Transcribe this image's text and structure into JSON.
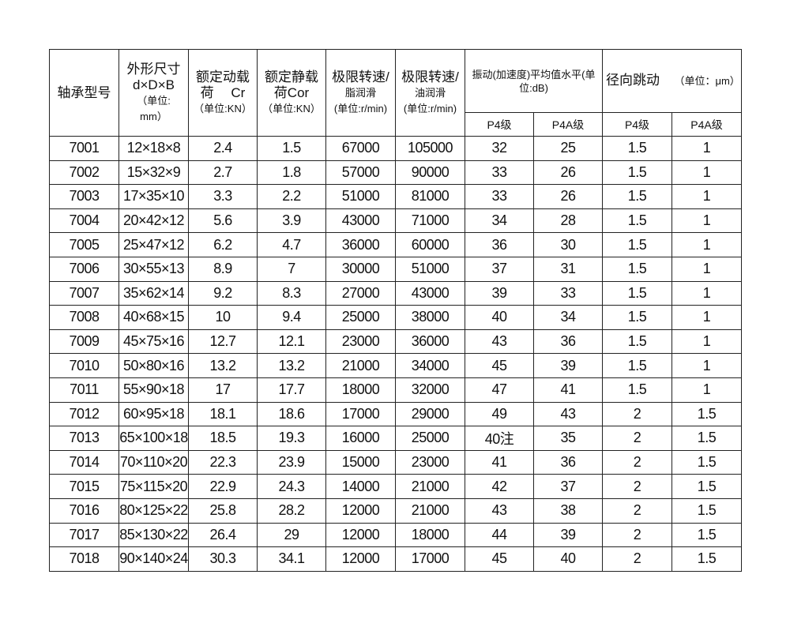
{
  "table": {
    "headers": {
      "model": "轴承型号",
      "dims": [
        "外形尺寸",
        "d×D×B",
        "（单位:",
        "mm）"
      ],
      "dynamic_load": [
        "额定动载",
        "荷　 Cr",
        "（单位:KN）"
      ],
      "static_load": [
        "额定静载",
        "荷Cor",
        "（单位:KN）"
      ],
      "speed_grease": [
        "极限转速/",
        "脂润滑",
        "(单位:r/min)"
      ],
      "speed_oil": [
        "极限转速/",
        "油润滑",
        "(单位:r/min)"
      ],
      "vibration": "振动(加速度)平均值水平(单位:dB)",
      "runout": "径向跳动",
      "runout_unit": "（单位：μm）",
      "sub": [
        "P4级",
        "P4A级",
        "P4级",
        "P4A级"
      ]
    },
    "rows": [
      [
        "7001",
        "12×18×8",
        "2.4",
        "1.5",
        "67000",
        "105000",
        "32",
        "25",
        "1.5",
        "1"
      ],
      [
        "7002",
        "15×32×9",
        "2.7",
        "1.8",
        "57000",
        "90000",
        "33",
        "26",
        "1.5",
        "1"
      ],
      [
        "7003",
        "17×35×10",
        "3.3",
        "2.2",
        "51000",
        "81000",
        "33",
        "26",
        "1.5",
        "1"
      ],
      [
        "7004",
        "20×42×12",
        "5.6",
        "3.9",
        "43000",
        "71000",
        "34",
        "28",
        "1.5",
        "1"
      ],
      [
        "7005",
        "25×47×12",
        "6.2",
        "4.7",
        "36000",
        "60000",
        "36",
        "30",
        "1.5",
        "1"
      ],
      [
        "7006",
        "30×55×13",
        "8.9",
        "7",
        "30000",
        "51000",
        "37",
        "31",
        "1.5",
        "1"
      ],
      [
        "7007",
        "35×62×14",
        "9.2",
        "8.3",
        "27000",
        "43000",
        "39",
        "33",
        "1.5",
        "1"
      ],
      [
        "7008",
        "40×68×15",
        "10",
        "9.4",
        "25000",
        "38000",
        "40",
        "34",
        "1.5",
        "1"
      ],
      [
        "7009",
        "45×75×16",
        "12.7",
        "12.1",
        "23000",
        "36000",
        "43",
        "36",
        "1.5",
        "1"
      ],
      [
        "7010",
        "50×80×16",
        "13.2",
        "13.2",
        "21000",
        "34000",
        "45",
        "39",
        "1.5",
        "1"
      ],
      [
        "7011",
        "55×90×18",
        "17",
        "17.7",
        "18000",
        "32000",
        "47",
        "41",
        "1.5",
        "1"
      ],
      [
        "7012",
        "60×95×18",
        "18.1",
        "18.6",
        "17000",
        "29000",
        "49",
        "43",
        "2",
        "1.5"
      ],
      [
        "7013",
        "65×100×18",
        "18.5",
        "19.3",
        "16000",
        "25000",
        "40注",
        "35",
        "2",
        "1.5"
      ],
      [
        "7014",
        "70×110×20",
        "22.3",
        "23.9",
        "15000",
        "23000",
        "41",
        "36",
        "2",
        "1.5"
      ],
      [
        "7015",
        "75×115×20",
        "22.9",
        "24.3",
        "14000",
        "21000",
        "42",
        "37",
        "2",
        "1.5"
      ],
      [
        "7016",
        "80×125×22",
        "25.8",
        "28.2",
        "12000",
        "21000",
        "43",
        "38",
        "2",
        "1.5"
      ],
      [
        "7017",
        "85×130×22",
        "26.4",
        "29",
        "12000",
        "18000",
        "44",
        "39",
        "2",
        "1.5"
      ],
      [
        "7018",
        "90×140×24",
        "30.3",
        "34.1",
        "12000",
        "17000",
        "45",
        "40",
        "2",
        "1.5"
      ]
    ]
  }
}
